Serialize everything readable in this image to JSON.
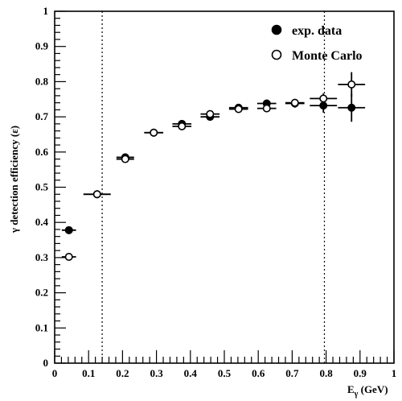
{
  "chart_data": {
    "type": "scatter",
    "title": "",
    "xlabel": "E",
    "xlabel_sub": "γ",
    "xlabel_unit": " (GeV)",
    "ylabel": "γ detection efficiency (ε)",
    "xlim": [
      0,
      1
    ],
    "ylim": [
      0,
      1
    ],
    "x_ticks": [
      "0",
      "0.1",
      "0.2",
      "0.3",
      "0.4",
      "0.5",
      "0.6",
      "0.7",
      "0.8",
      "0.9",
      "1"
    ],
    "y_ticks": [
      "0",
      "0.1",
      "0.2",
      "0.3",
      "0.4",
      "0.5",
      "0.6",
      "0.7",
      "0.8",
      "0.9",
      "1"
    ],
    "grid": false,
    "legend_position": "top-right",
    "cut_lines_x": [
      0.14,
      0.795
    ],
    "series": [
      {
        "name": "exp. data",
        "marker": "filled-circle",
        "points": [
          {
            "x": 0.042,
            "y": 0.378,
            "xerr": 0.021,
            "yerr": 0.0
          },
          {
            "x": 0.125,
            "y": 0.48,
            "xerr": 0.04,
            "yerr": 0.0
          },
          {
            "x": 0.208,
            "y": 0.585,
            "xerr": 0.026,
            "yerr": 0.0
          },
          {
            "x": 0.292,
            "y": 0.655,
            "xerr": 0.028,
            "yerr": 0.0
          },
          {
            "x": 0.375,
            "y": 0.68,
            "xerr": 0.028,
            "yerr": 0.0
          },
          {
            "x": 0.458,
            "y": 0.7,
            "xerr": 0.028,
            "yerr": 0.0
          },
          {
            "x": 0.542,
            "y": 0.726,
            "xerr": 0.028,
            "yerr": 0.0
          },
          {
            "x": 0.625,
            "y": 0.738,
            "xerr": 0.028,
            "yerr": 0.0
          },
          {
            "x": 0.708,
            "y": 0.738,
            "xerr": 0.028,
            "yerr": 0.012
          },
          {
            "x": 0.792,
            "y": 0.732,
            "xerr": 0.04,
            "yerr": 0.02
          },
          {
            "x": 0.875,
            "y": 0.726,
            "xerr": 0.04,
            "yerr": 0.04
          }
        ]
      },
      {
        "name": "Monte Carlo",
        "marker": "open-circle",
        "points": [
          {
            "x": 0.042,
            "y": 0.302,
            "xerr": 0.021,
            "yerr": 0.0
          },
          {
            "x": 0.125,
            "y": 0.48,
            "xerr": 0.04,
            "yerr": 0.0
          },
          {
            "x": 0.208,
            "y": 0.58,
            "xerr": 0.026,
            "yerr": 0.0
          },
          {
            "x": 0.292,
            "y": 0.655,
            "xerr": 0.028,
            "yerr": 0.0
          },
          {
            "x": 0.375,
            "y": 0.673,
            "xerr": 0.028,
            "yerr": 0.0
          },
          {
            "x": 0.458,
            "y": 0.708,
            "xerr": 0.028,
            "yerr": 0.0
          },
          {
            "x": 0.542,
            "y": 0.722,
            "xerr": 0.028,
            "yerr": 0.0
          },
          {
            "x": 0.625,
            "y": 0.724,
            "xerr": 0.028,
            "yerr": 0.0
          },
          {
            "x": 0.708,
            "y": 0.74,
            "xerr": 0.028,
            "yerr": 0.0
          },
          {
            "x": 0.792,
            "y": 0.752,
            "xerr": 0.04,
            "yerr": 0.015
          },
          {
            "x": 0.875,
            "y": 0.792,
            "xerr": 0.04,
            "yerr": 0.035
          }
        ]
      }
    ]
  }
}
